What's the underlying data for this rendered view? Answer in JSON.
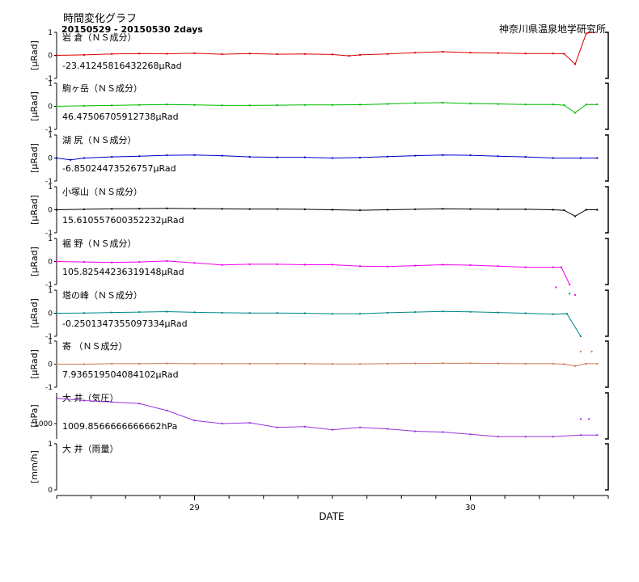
{
  "page": {
    "title": "時間変化グラフ",
    "range": "20150529 - 20150530 2days",
    "organization": "神奈川県温泉地学研究所"
  },
  "chart_data": {
    "type": "line",
    "xlabel": "DATE",
    "x_range_days": [
      0,
      2
    ],
    "x_tick_labels": [
      {
        "day": 0.5,
        "label": "29"
      },
      {
        "day": 1.5,
        "label": "30"
      }
    ],
    "panels": [
      {
        "title": "岩 倉（ＮＳ成分）",
        "unit": "[μRad]",
        "offset": "-23.41245816432268μRad",
        "color": "#dd0000",
        "ylim": [
          -1,
          1
        ],
        "yticks": [
          "1",
          "0",
          "-1"
        ],
        "x": [
          0,
          0.1,
          0.2,
          0.3,
          0.4,
          0.5,
          0.6,
          0.7,
          0.8,
          0.9,
          1.0,
          1.06,
          1.1,
          1.2,
          1.3,
          1.4,
          1.5,
          1.6,
          1.7,
          1.8,
          1.84,
          1.88,
          1.92,
          1.94
        ],
        "values": [
          0,
          0.02,
          0.06,
          0.08,
          0.07,
          0.09,
          0.05,
          0.08,
          0.05,
          0.06,
          0.04,
          -0.02,
          0.02,
          0.06,
          0.12,
          0.16,
          0.12,
          0.1,
          0.08,
          0.08,
          0.07,
          -0.38,
          0.95,
          1.0
        ]
      },
      {
        "title": "駒ヶ岳（ＮＳ成分）",
        "unit": "[μRad]",
        "offset": "46.47506705912738μRad",
        "color": "#00bb00",
        "ylim": [
          -1,
          1
        ],
        "yticks": [
          "1",
          "0",
          "-1"
        ],
        "x": [
          0,
          0.1,
          0.2,
          0.3,
          0.4,
          0.5,
          0.6,
          0.7,
          0.8,
          0.9,
          1.0,
          1.1,
          1.2,
          1.3,
          1.4,
          1.5,
          1.6,
          1.7,
          1.8,
          1.84,
          1.88,
          1.92,
          1.96
        ],
        "values": [
          0,
          0.02,
          0.04,
          0.06,
          0.08,
          0.06,
          0.04,
          0.04,
          0.05,
          0.06,
          0.06,
          0.07,
          0.1,
          0.14,
          0.16,
          0.12,
          0.1,
          0.08,
          0.08,
          0.05,
          -0.28,
          0.08,
          0.08
        ]
      },
      {
        "title": "湖 尻（ＮＳ成分）",
        "unit": "[μRad]",
        "offset": "-6.85024473526757μRad",
        "color": "#0000cc",
        "ylim": [
          -1,
          1
        ],
        "yticks": [
          "1",
          "0",
          "-1"
        ],
        "x": [
          0,
          0.05,
          0.1,
          0.2,
          0.3,
          0.4,
          0.5,
          0.6,
          0.7,
          0.8,
          0.9,
          1.0,
          1.1,
          1.2,
          1.3,
          1.4,
          1.5,
          1.6,
          1.7,
          1.8,
          1.9,
          1.96
        ],
        "values": [
          0,
          -0.08,
          0,
          0.05,
          0.08,
          0.12,
          0.13,
          0.1,
          0.05,
          0.03,
          0.03,
          0,
          0.02,
          0.06,
          0.1,
          0.13,
          0.12,
          0.08,
          0.05,
          0,
          0,
          0
        ]
      },
      {
        "title": "小塚山（ＮＳ成分）",
        "unit": "[μRad]",
        "offset": "15.610557600352232μRad",
        "color": "#000000",
        "ylim": [
          -1,
          1
        ],
        "yticks": [
          "1",
          "0",
          "-1"
        ],
        "x": [
          0,
          0.1,
          0.2,
          0.3,
          0.4,
          0.5,
          0.6,
          0.7,
          0.8,
          0.9,
          1.0,
          1.1,
          1.2,
          1.3,
          1.4,
          1.5,
          1.6,
          1.7,
          1.8,
          1.84,
          1.88,
          1.92,
          1.96
        ],
        "values": [
          0,
          0.02,
          0.04,
          0.05,
          0.06,
          0.05,
          0.04,
          0.03,
          0.03,
          0.02,
          0,
          -0.02,
          0,
          0.02,
          0.04,
          0.03,
          0.02,
          0.02,
          0,
          -0.02,
          -0.28,
          0,
          0
        ]
      },
      {
        "title": "裾 野（ＮＳ成分）",
        "unit": "[μRad]",
        "offset": "105.82544236319148μRad",
        "color": "#ee00ee",
        "ylim": [
          -1,
          1
        ],
        "yticks": [
          "1",
          "0",
          "-1"
        ],
        "x": [
          0,
          0.1,
          0.2,
          0.3,
          0.4,
          0.5,
          0.6,
          0.7,
          0.8,
          0.9,
          1.0,
          1.1,
          1.2,
          1.3,
          1.4,
          1.5,
          1.6,
          1.7,
          1.8,
          1.83,
          1.86
        ],
        "values": [
          0,
          -0.02,
          -0.04,
          -0.02,
          0.02,
          -0.06,
          -0.15,
          -0.12,
          -0.12,
          -0.14,
          -0.14,
          -0.2,
          -0.22,
          -0.18,
          -0.14,
          -0.16,
          -0.2,
          -0.25,
          -0.25,
          -0.25,
          -1.0
        ],
        "points": [
          {
            "x": 1.81,
            "y": -1.12
          },
          {
            "x": 1.88,
            "y": -1.45
          }
        ]
      },
      {
        "title": "塔の峰（ＮＳ成分）",
        "unit": "[μRad]",
        "offset": "-0.2501347355097334μRad",
        "color": "#008888",
        "ylim": [
          -1,
          1
        ],
        "yticks": [
          "1",
          "0",
          "-1"
        ],
        "x": [
          0,
          0.1,
          0.2,
          0.3,
          0.4,
          0.5,
          0.6,
          0.7,
          0.8,
          0.9,
          1.0,
          1.1,
          1.2,
          1.3,
          1.4,
          1.5,
          1.6,
          1.7,
          1.8,
          1.85,
          1.9
        ],
        "values": [
          0,
          0.01,
          0.03,
          0.05,
          0.07,
          0.04,
          0.02,
          0.01,
          0.01,
          0,
          -0.02,
          -0.02,
          0.02,
          0.05,
          0.08,
          0.06,
          0.03,
          0,
          -0.04,
          -0.02,
          -1.0
        ],
        "points": [
          {
            "x": 1.86,
            "y": 0.85
          }
        ]
      },
      {
        "title": "寄 （ＮＳ成分）",
        "unit": "[μRad]",
        "offset": "7.936519504084102μRad",
        "color": "#cc7755",
        "ylim": [
          -1,
          1
        ],
        "yticks": [
          "1",
          "0",
          "-1"
        ],
        "x": [
          0,
          0.1,
          0.2,
          0.3,
          0.4,
          0.5,
          0.6,
          0.7,
          0.8,
          0.9,
          1.0,
          1.1,
          1.2,
          1.3,
          1.4,
          1.5,
          1.6,
          1.7,
          1.8,
          1.84,
          1.88,
          1.92,
          1.96
        ],
        "values": [
          0,
          0,
          0.02,
          0.02,
          0.03,
          0.02,
          0.02,
          0.02,
          0.02,
          0.02,
          0.01,
          0.01,
          0.02,
          0.03,
          0.04,
          0.04,
          0.03,
          0.02,
          0.02,
          0,
          -0.08,
          0.02,
          0.02
        ],
        "points": [
          {
            "x": 1.9,
            "y": 0.55
          },
          {
            "x": 1.94,
            "y": 0.55
          }
        ]
      },
      {
        "title": "大 井（気圧）",
        "unit": "[hPa]",
        "offset": "1009.8566666666662hPa",
        "color": "#9933dd",
        "ylim": [
          998,
          1004
        ],
        "yticks": [
          "1000"
        ],
        "x": [
          0,
          0.1,
          0.2,
          0.3,
          0.4,
          0.5,
          0.6,
          0.7,
          0.8,
          0.9,
          1.0,
          1.1,
          1.2,
          1.3,
          1.4,
          1.5,
          1.6,
          1.7,
          1.8,
          1.9,
          1.96
        ],
        "values": [
          1003.3,
          1003.0,
          1002.8,
          1002.6,
          1001.7,
          1000.4,
          1000.0,
          1000.1,
          999.5,
          999.6,
          999.2,
          999.5,
          999.3,
          999.0,
          998.9,
          998.6,
          998.3,
          998.3,
          998.3,
          998.5,
          998.5
        ],
        "points": [
          {
            "x": 1.9,
            "y": 1000.6
          },
          {
            "x": 1.93,
            "y": 1000.6
          }
        ]
      },
      {
        "title": "大 井（雨量）",
        "unit": "[mm/h]",
        "offset": "",
        "color": "#000000",
        "ylim": [
          0,
          1
        ],
        "yticks": [
          "1",
          "0"
        ],
        "x": [],
        "values": []
      }
    ]
  }
}
